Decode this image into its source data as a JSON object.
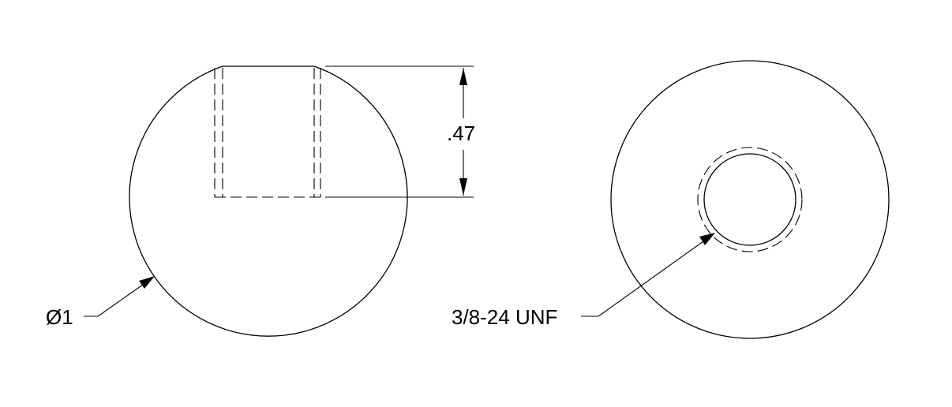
{
  "left_view": {
    "depth_dimension": ".47",
    "diameter_callout": "Ø1"
  },
  "right_view": {
    "thread_callout": "3/8-24 UNF"
  },
  "colors": {
    "line": "#000000",
    "background": "#ffffff"
  }
}
